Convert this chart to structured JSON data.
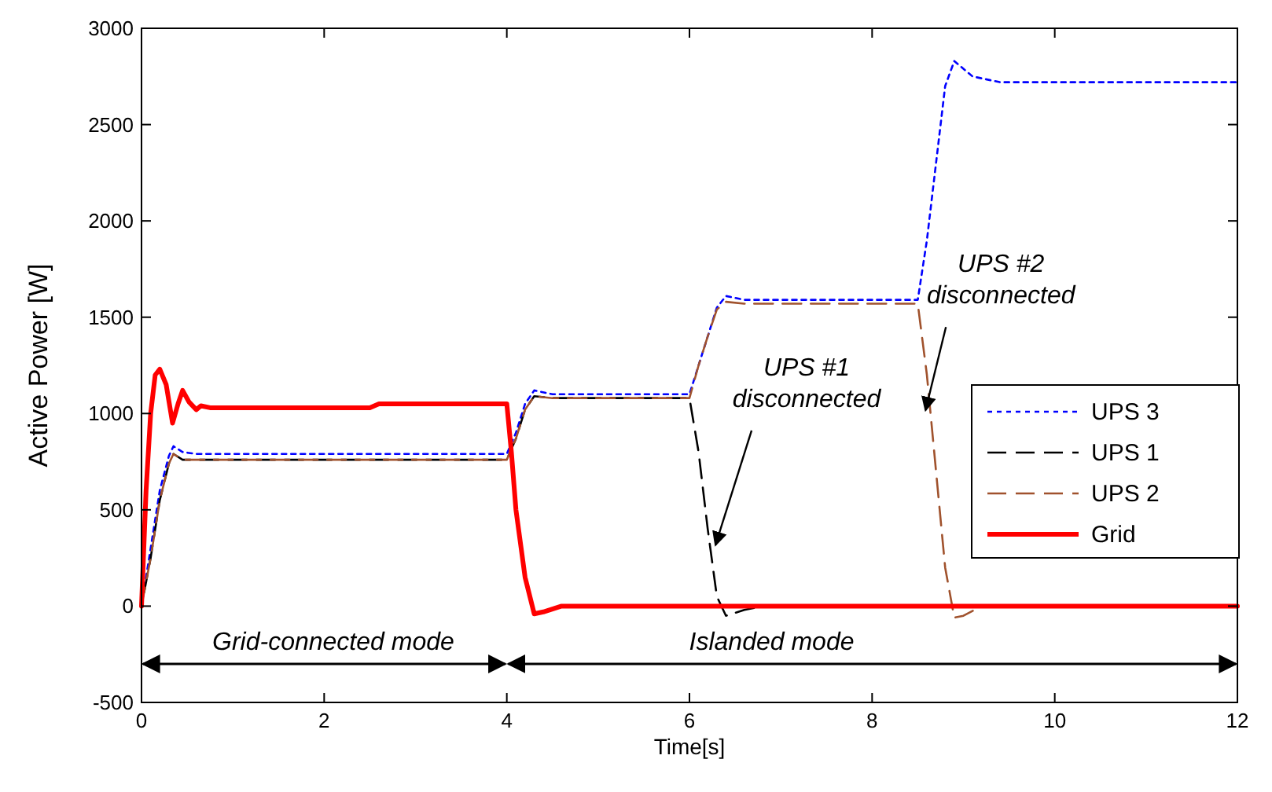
{
  "chart_data": {
    "type": "line",
    "xlabel": "Time[s]",
    "ylabel": "Active Power [W]",
    "xlim": [
      0,
      12
    ],
    "ylim": [
      -500,
      3000
    ],
    "xticks": [
      0,
      2,
      4,
      6,
      8,
      10,
      12
    ],
    "yticks": [
      -500,
      0,
      500,
      1000,
      1500,
      2000,
      2500,
      3000
    ],
    "grid": false,
    "legend": "right",
    "series": [
      {
        "name": "UPS 3",
        "color": "#0000ff",
        "line_style": "dotted",
        "x": [
          0,
          0.1,
          0.2,
          0.3,
          0.35,
          0.45,
          0.6,
          4,
          4.1,
          4.2,
          4.3,
          4.5,
          6,
          6.1,
          6.2,
          6.3,
          6.4,
          6.6,
          8.5,
          8.6,
          8.7,
          8.8,
          8.9,
          9.1,
          9.4,
          12
        ],
        "values": [
          0,
          300,
          600,
          780,
          830,
          800,
          790,
          790,
          900,
          1050,
          1120,
          1100,
          1100,
          1250,
          1400,
          1550,
          1610,
          1590,
          1590,
          1900,
          2300,
          2700,
          2830,
          2750,
          2720,
          2720
        ]
      },
      {
        "name": "UPS 1",
        "color": "#000000",
        "line_style": "dashed",
        "x": [
          0,
          0.1,
          0.2,
          0.3,
          0.35,
          0.45,
          0.6,
          4,
          4.1,
          4.2,
          4.3,
          4.5,
          6,
          6.1,
          6.2,
          6.3,
          6.4,
          6.6,
          6.8,
          12
        ],
        "values": [
          0,
          250,
          550,
          740,
          790,
          760,
          760,
          760,
          870,
          1020,
          1090,
          1080,
          1080,
          800,
          400,
          50,
          -50,
          -20,
          0,
          0
        ]
      },
      {
        "name": "UPS 2",
        "color": "#a0522d",
        "line_style": "dashed",
        "x": [
          0,
          0.1,
          0.2,
          0.3,
          0.35,
          0.45,
          0.6,
          4,
          4.1,
          4.2,
          4.3,
          4.5,
          6,
          6.1,
          6.2,
          6.3,
          6.4,
          6.6,
          8.5,
          8.6,
          8.7,
          8.8,
          8.9,
          9.0,
          9.2,
          12
        ],
        "values": [
          0,
          250,
          550,
          740,
          790,
          760,
          760,
          760,
          870,
          1020,
          1090,
          1080,
          1080,
          1250,
          1400,
          1540,
          1580,
          1570,
          1570,
          1200,
          700,
          200,
          -60,
          -50,
          0,
          0
        ]
      },
      {
        "name": "Grid",
        "color": "#ff0000",
        "line_style": "solid",
        "x": [
          0,
          0.05,
          0.1,
          0.15,
          0.2,
          0.27,
          0.34,
          0.4,
          0.45,
          0.52,
          0.6,
          0.65,
          0.75,
          2.5,
          2.6,
          4,
          4.05,
          4.1,
          4.2,
          4.3,
          4.4,
          4.6,
          12
        ],
        "values": [
          0,
          600,
          1000,
          1200,
          1230,
          1150,
          950,
          1050,
          1120,
          1060,
          1020,
          1040,
          1030,
          1030,
          1050,
          1050,
          800,
          500,
          150,
          -40,
          -30,
          0,
          0
        ]
      }
    ],
    "annotations": [
      {
        "text": "UPS #1\ndisconnected",
        "x": 6.25,
        "y": 300
      },
      {
        "text": "UPS #2\ndisconnected",
        "x": 8.55,
        "y": 1000
      },
      "Grid-connected mode",
      "Islanded mode"
    ]
  }
}
